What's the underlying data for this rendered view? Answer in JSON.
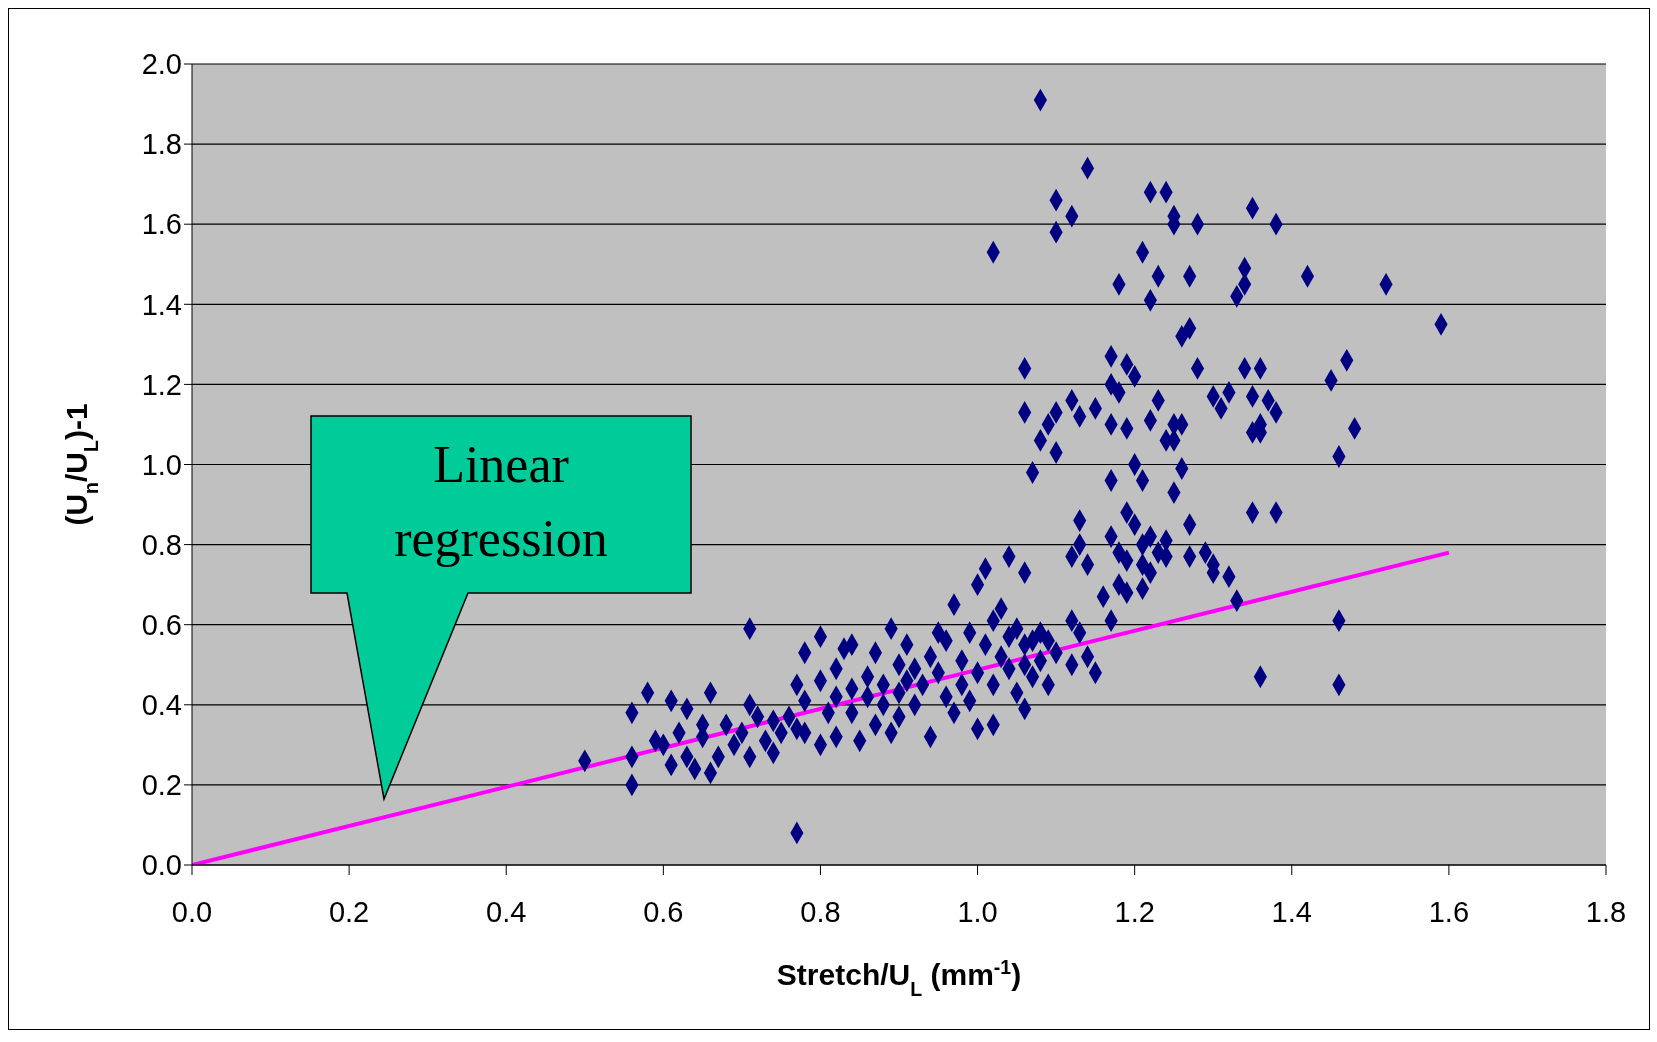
{
  "chart_data": {
    "type": "scatter",
    "xlabel": "Stretch/U$_{L}$ (mm$^{-1}$)",
    "ylabel": "(U$_{n}$/U$_{L}$)-1",
    "xlim": [
      0,
      1.8
    ],
    "ylim": [
      0,
      2.0
    ],
    "xticks": [
      {
        "value": 0,
        "label": "0.0"
      },
      {
        "value": 0.2,
        "label": "0.2"
      },
      {
        "value": 0.4,
        "label": "0.4"
      },
      {
        "value": 0.6,
        "label": "0.6"
      },
      {
        "value": 0.8,
        "label": "0.8"
      },
      {
        "value": 1.0,
        "label": "1.0"
      },
      {
        "value": 1.2,
        "label": "1.2"
      },
      {
        "value": 1.4,
        "label": "1.4"
      },
      {
        "value": 1.6,
        "label": "1.6"
      },
      {
        "value": 1.8,
        "label": "1.8"
      }
    ],
    "yticks": [
      {
        "value": 0,
        "label": "0.0"
      },
      {
        "value": 0.2,
        "label": "0.2"
      },
      {
        "value": 0.4,
        "label": "0.4"
      },
      {
        "value": 0.6,
        "label": "0.6"
      },
      {
        "value": 0.8,
        "label": "0.8"
      },
      {
        "value": 1.0,
        "label": "1.0"
      },
      {
        "value": 1.2,
        "label": "1.2"
      },
      {
        "value": 1.4,
        "label": "1.4"
      },
      {
        "value": 1.6,
        "label": "1.6"
      },
      {
        "value": 1.8,
        "label": "1.8"
      },
      {
        "value": 2.0,
        "label": "2.0"
      }
    ],
    "grid": "y",
    "annotations": [
      "Linear regression"
    ],
    "series": [
      {
        "color": "#000080",
        "marker": "diamond",
        "x": [
          1.08,
          1.14,
          1.1,
          1.12,
          1.1,
          1.02,
          1.22,
          1.24,
          1.25,
          1.25,
          1.28,
          1.35,
          1.38,
          1.21,
          1.23,
          1.18,
          1.22,
          1.27,
          1.34,
          1.34,
          1.33,
          1.42,
          1.52,
          1.59,
          1.27,
          1.26,
          1.06,
          1.17,
          1.19,
          1.2,
          1.17,
          1.18,
          1.28,
          1.34,
          1.36,
          1.45,
          1.47,
          1.06,
          1.09,
          1.1,
          1.12,
          1.13,
          1.15,
          1.17,
          1.19,
          1.22,
          1.23,
          1.25,
          1.26,
          1.24,
          1.25,
          1.3,
          1.31,
          1.32,
          1.35,
          1.37,
          1.38,
          1.36,
          1.35,
          1.36,
          1.48,
          1.46,
          1.08,
          1.1,
          1.07,
          1.2,
          1.21,
          1.17,
          1.26,
          1.25,
          1.13,
          1.17,
          1.19,
          1.2,
          1.21,
          1.22,
          1.23,
          1.24,
          1.27,
          1.35,
          1.38,
          1.12,
          1.13,
          1.14,
          1.18,
          1.19,
          1.21,
          1.22,
          1.24,
          1.27,
          1.29,
          1.3,
          1.3,
          1.32,
          1.06,
          1.04,
          1.18,
          1.19,
          1.21,
          1.16,
          1.33,
          1.46,
          1.36,
          1.46,
          1.17,
          1.12,
          1.13,
          1.14,
          1.15,
          1.12,
          1.06,
          1.02,
          1.09,
          0.5,
          0.56,
          0.56,
          0.56,
          0.58,
          0.59,
          0.6,
          0.61,
          0.61,
          0.62,
          0.63,
          0.63,
          0.64,
          0.65,
          0.65,
          0.66,
          0.66,
          0.67,
          0.68,
          0.69,
          0.7,
          0.71,
          0.71,
          0.71,
          0.72,
          0.73,
          0.74,
          0.74,
          0.75,
          0.76,
          0.77,
          0.77,
          0.77,
          0.78,
          0.78,
          0.78,
          0.8,
          0.8,
          0.8,
          0.81,
          0.82,
          0.82,
          0.82,
          0.83,
          0.84,
          0.84,
          0.84,
          0.85,
          0.86,
          0.86,
          0.87,
          0.87,
          0.88,
          0.88,
          0.89,
          0.89,
          0.9,
          0.9,
          0.9,
          0.91,
          0.91,
          0.92,
          0.92,
          0.93,
          0.94,
          0.94,
          0.95,
          0.95,
          0.96,
          0.96,
          0.97,
          0.97,
          0.98,
          0.98,
          0.99,
          0.99,
          1.0,
          1.0,
          1.0,
          1.01,
          1.01,
          1.02,
          1.02,
          1.03,
          1.03,
          1.04,
          1.04,
          1.05,
          1.05,
          1.06,
          1.06,
          1.07,
          1.07,
          1.08,
          1.08,
          1.09,
          1.1
        ],
        "values": [
          1.91,
          1.74,
          1.66,
          1.62,
          1.58,
          1.53,
          1.68,
          1.68,
          1.62,
          1.6,
          1.6,
          1.64,
          1.6,
          1.53,
          1.47,
          1.45,
          1.41,
          1.47,
          1.49,
          1.45,
          1.42,
          1.47,
          1.45,
          1.35,
          1.34,
          1.32,
          1.24,
          1.27,
          1.25,
          1.22,
          1.2,
          1.18,
          1.24,
          1.24,
          1.24,
          1.21,
          1.26,
          1.13,
          1.1,
          1.13,
          1.16,
          1.12,
          1.14,
          1.1,
          1.09,
          1.11,
          1.16,
          1.1,
          1.1,
          1.06,
          1.06,
          1.17,
          1.14,
          1.18,
          1.17,
          1.16,
          1.13,
          1.1,
          1.08,
          1.08,
          1.09,
          1.02,
          1.06,
          1.03,
          0.98,
          1.0,
          0.96,
          0.96,
          0.99,
          0.93,
          0.86,
          0.82,
          0.88,
          0.85,
          0.8,
          0.82,
          0.78,
          0.81,
          0.85,
          0.88,
          0.88,
          0.77,
          0.8,
          0.75,
          0.78,
          0.76,
          0.75,
          0.73,
          0.77,
          0.77,
          0.78,
          0.75,
          0.73,
          0.72,
          0.73,
          0.77,
          0.7,
          0.68,
          0.69,
          0.67,
          0.66,
          0.61,
          0.47,
          0.45,
          0.61,
          0.61,
          0.58,
          0.52,
          0.48,
          0.5,
          0.39,
          0.35,
          0.45,
          0.26,
          0.27,
          0.2,
          0.38,
          0.43,
          0.31,
          0.3,
          0.25,
          0.41,
          0.33,
          0.27,
          0.39,
          0.24,
          0.35,
          0.32,
          0.23,
          0.43,
          0.27,
          0.35,
          0.3,
          0.33,
          0.59,
          0.27,
          0.4,
          0.37,
          0.31,
          0.36,
          0.28,
          0.33,
          0.37,
          0.08,
          0.34,
          0.45,
          0.41,
          0.33,
          0.53,
          0.57,
          0.3,
          0.46,
          0.38,
          0.49,
          0.42,
          0.32,
          0.54,
          0.55,
          0.44,
          0.38,
          0.31,
          0.47,
          0.42,
          0.53,
          0.35,
          0.45,
          0.4,
          0.59,
          0.33,
          0.5,
          0.43,
          0.37,
          0.55,
          0.46,
          0.4,
          0.49,
          0.45,
          0.32,
          0.52,
          0.48,
          0.58,
          0.42,
          0.56,
          0.65,
          0.38,
          0.51,
          0.45,
          0.58,
          0.41,
          0.7,
          0.34,
          0.48,
          0.74,
          0.55,
          0.61,
          0.45,
          0.64,
          0.52,
          0.57,
          0.49,
          0.59,
          0.43,
          0.55,
          0.5,
          0.47,
          0.56,
          0.58,
          0.51,
          0.56,
          0.53
        ]
      },
      {
        "type": "line",
        "color": "#ff00ff",
        "marker": "none",
        "line_style": "solid",
        "x": [
          0,
          1.6
        ],
        "values": [
          0,
          0.78
        ]
      }
    ]
  }
}
